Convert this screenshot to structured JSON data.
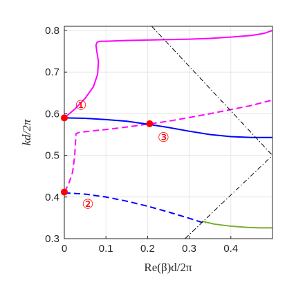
{
  "chart_data": {
    "type": "line",
    "xlabel": "Re(β)d/2π",
    "ylabel": "kd/2π",
    "xlim": [
      0,
      0.5
    ],
    "ylim": [
      0.3,
      0.81
    ],
    "xticks": [
      "0",
      "0.1",
      "0.2",
      "0.3",
      "0.4"
    ],
    "yticks": [
      "0.3",
      "0.4",
      "0.5",
      "0.6",
      "0.7",
      "0.8"
    ],
    "grid": true,
    "colors": {
      "magenta": "#ff00ff",
      "blue": "#0000ff",
      "green": "#77ac30",
      "black": "#000000",
      "marker": "#ff0000"
    },
    "series": [
      {
        "color": "magenta",
        "style": "solid",
        "x": [
          0,
          0.025,
          0.05,
          0.07,
          0.08,
          0.082,
          0.078,
          0.076,
          0.079,
          0.085,
          0.1,
          0.15,
          0.2,
          0.25,
          0.3,
          0.35,
          0.4,
          0.45,
          0.48,
          0.5
        ],
        "y": [
          0.59,
          0.611,
          0.637,
          0.665,
          0.695,
          0.725,
          0.75,
          0.765,
          0.772,
          0.774,
          0.774,
          0.776,
          0.777,
          0.778,
          0.779,
          0.781,
          0.784,
          0.788,
          0.793,
          0.8
        ]
      },
      {
        "color": "magenta",
        "style": "dashed",
        "x": [
          0,
          0.01,
          0.02,
          0.025,
          0.028,
          0.035,
          0.06,
          0.1,
          0.15,
          0.2,
          0.25,
          0.3,
          0.35,
          0.4,
          0.45,
          0.5
        ],
        "y": [
          0.412,
          0.43,
          0.46,
          0.5,
          0.552,
          0.555,
          0.558,
          0.562,
          0.568,
          0.575,
          0.582,
          0.591,
          0.6,
          0.61,
          0.62,
          0.633
        ]
      },
      {
        "color": "blue",
        "style": "solid",
        "x": [
          0,
          0.05,
          0.1,
          0.15,
          0.2,
          0.25,
          0.3,
          0.35,
          0.4,
          0.45,
          0.48,
          0.5
        ],
        "y": [
          0.59,
          0.589,
          0.586,
          0.582,
          0.575,
          0.567,
          0.558,
          0.55,
          0.545,
          0.543,
          0.543,
          0.543
        ]
      },
      {
        "color": "blue",
        "style": "dashed",
        "x": [
          0,
          0.05,
          0.1,
          0.15,
          0.2,
          0.25,
          0.3,
          0.34
        ],
        "y": [
          0.41,
          0.407,
          0.4,
          0.39,
          0.378,
          0.364,
          0.349,
          0.336
        ]
      },
      {
        "color": "green",
        "style": "solid",
        "x": [
          0.33,
          0.36,
          0.4,
          0.44,
          0.47,
          0.5
        ],
        "y": [
          0.342,
          0.335,
          0.33,
          0.327,
          0.326,
          0.326
        ]
      },
      {
        "color": "black",
        "style": "dashdot",
        "x": [
          0.21,
          0.5
        ],
        "y": [
          0.81,
          0.5
        ]
      },
      {
        "color": "black",
        "style": "dashdot",
        "x": [
          0.29,
          0.5
        ],
        "y": [
          0.3,
          0.5
        ]
      }
    ],
    "markers": [
      {
        "x": 0,
        "y": 0.59,
        "label": "①"
      },
      {
        "x": 0,
        "y": 0.412,
        "label": "②"
      },
      {
        "x": 0.205,
        "y": 0.576,
        "label": "③"
      }
    ]
  }
}
